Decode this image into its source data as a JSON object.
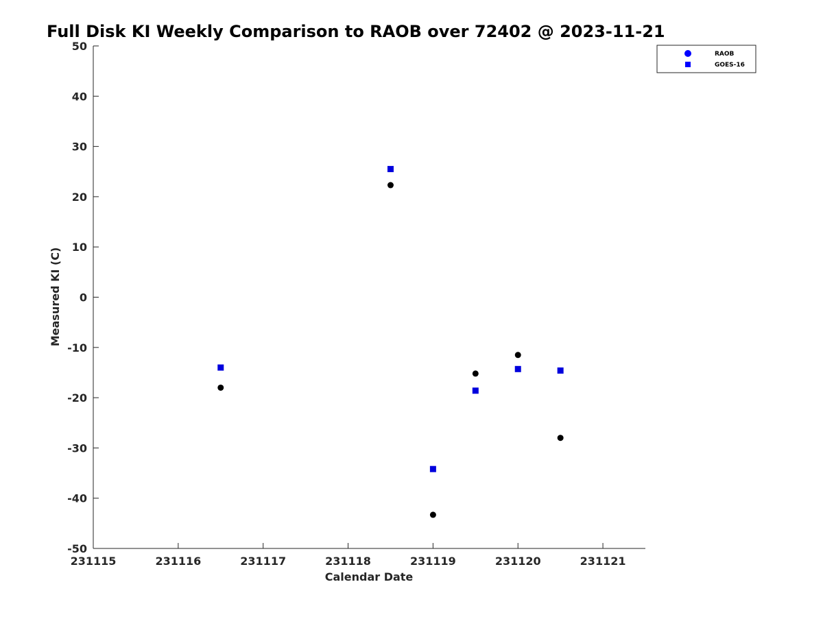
{
  "chart_data": {
    "type": "scatter",
    "title": "Full Disk KI Weekly Comparison to RAOB over 72402 @ 2023-11-21",
    "xlabel": "Calendar Date",
    "ylabel": "Measured KI (C)",
    "xlim": [
      231115,
      231121.5
    ],
    "ylim": [
      -50,
      50
    ],
    "xticks": [
      231115,
      231116,
      231117,
      231118,
      231119,
      231120,
      231121
    ],
    "xtick_labels": [
      "231115",
      "231116",
      "231117",
      "231118",
      "231119",
      "231120",
      "231121"
    ],
    "yticks": [
      -50,
      -40,
      -30,
      -20,
      -10,
      0,
      10,
      20,
      30,
      40,
      50
    ],
    "ytick_labels": [
      "-50",
      "-40",
      "-30",
      "-20",
      "-10",
      "0",
      "10",
      "20",
      "30",
      "40",
      "50"
    ],
    "grid": false,
    "legend_position": "top-right",
    "series": [
      {
        "name": "RAOB",
        "marker": "circle",
        "color": "#000000",
        "legend_color": "#0000ff",
        "points": [
          {
            "x": 231116.5,
            "y": -18.0
          },
          {
            "x": 231118.5,
            "y": 22.3
          },
          {
            "x": 231119.0,
            "y": -43.3
          },
          {
            "x": 231119.5,
            "y": -15.2
          },
          {
            "x": 231120.0,
            "y": -11.5
          },
          {
            "x": 231120.5,
            "y": -28.0
          }
        ]
      },
      {
        "name": "GOES-16",
        "marker": "square",
        "color": "#0000dd",
        "legend_color": "#0000ff",
        "points": [
          {
            "x": 231116.5,
            "y": -14.0
          },
          {
            "x": 231118.5,
            "y": 25.5
          },
          {
            "x": 231119.0,
            "y": -34.2
          },
          {
            "x": 231119.5,
            "y": -18.6
          },
          {
            "x": 231120.0,
            "y": -14.3
          },
          {
            "x": 231120.5,
            "y": -14.6
          }
        ]
      }
    ]
  }
}
